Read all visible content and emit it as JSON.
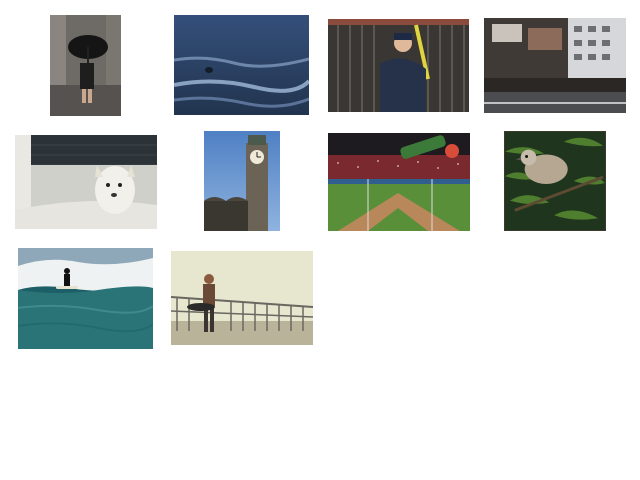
{
  "gallery": {
    "items": [
      {
        "id": "umbrella-walker"
      },
      {
        "id": "ocean-swimmer"
      },
      {
        "id": "batter-fence"
      },
      {
        "id": "city-street-crowd"
      },
      {
        "id": "dog-bathtub"
      },
      {
        "id": "clock-tower"
      },
      {
        "id": "baseball-stadium"
      },
      {
        "id": "bird-branch"
      },
      {
        "id": "surfer-wave"
      },
      {
        "id": "skateboarder-railing"
      }
    ]
  }
}
